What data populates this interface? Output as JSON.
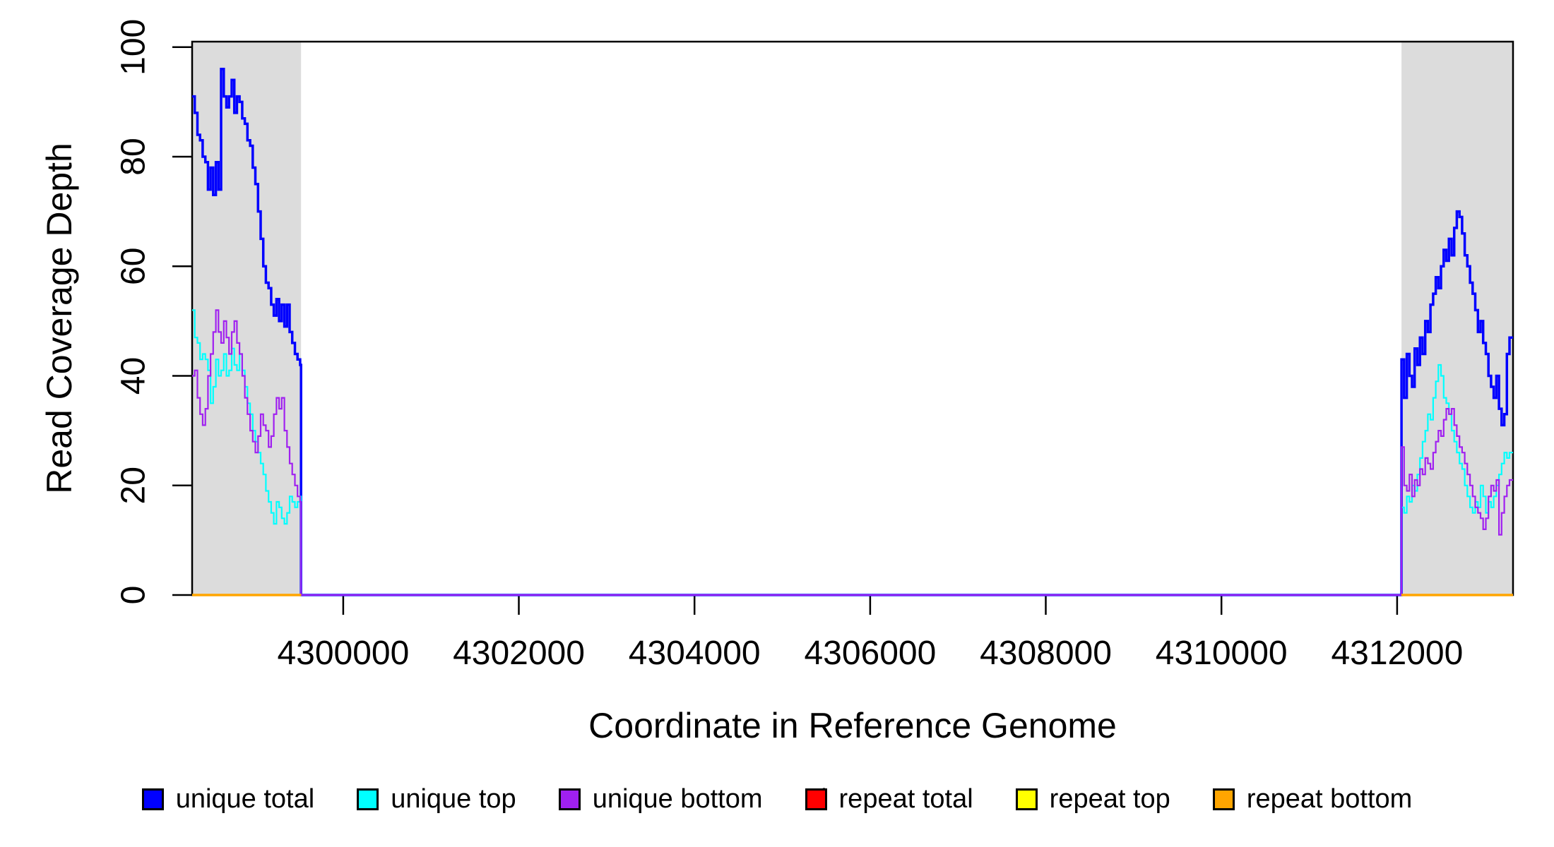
{
  "figure": {
    "x_axis_label": "Coordinate in Reference Genome",
    "y_axis_label": "Read Coverage Depth"
  },
  "chart_data": {
    "type": "line",
    "line_style": "step-after",
    "title": "",
    "xlabel": "Coordinate in Reference Genome",
    "ylabel": "Read Coverage Depth",
    "xlim": [
      4298280,
      4313320
    ],
    "ylim": [
      0,
      101
    ],
    "x_ticks": [
      4300000,
      4302000,
      4304000,
      4306000,
      4308000,
      4310000,
      4312000
    ],
    "y_ticks": [
      0,
      20,
      40,
      60,
      80,
      100
    ],
    "y_tick_labels_rotated": true,
    "grid": false,
    "region_color": "#DCDCDC",
    "shaded_regions": [
      {
        "name": "left-mapped-block",
        "x0": 4298280,
        "x1": 4299520
      },
      {
        "name": "right-mapped-block",
        "x0": 4312050,
        "x1": 4313320
      }
    ],
    "x_step": 30,
    "series": [
      {
        "name": "unique total",
        "color": "#0000FF",
        "width": 3.5,
        "group": "unique",
        "left_values": [
          91,
          88,
          84,
          83,
          80,
          79,
          74,
          78,
          73,
          79,
          74,
          96,
          91,
          89,
          91,
          94,
          88,
          91,
          90,
          87,
          86,
          83,
          82,
          78,
          75,
          70,
          65,
          60,
          57,
          56,
          53,
          51,
          54,
          50,
          53,
          49,
          53,
          48,
          46,
          44,
          43,
          42
        ],
        "right_values": [
          43,
          36,
          44,
          40,
          38,
          45,
          42,
          47,
          44,
          50,
          48,
          53,
          55,
          58,
          56,
          60,
          63,
          61,
          65,
          62,
          67,
          70,
          69,
          66,
          62,
          60,
          57,
          55,
          52,
          48,
          50,
          46,
          44,
          40,
          38,
          36,
          40,
          34,
          31,
          33,
          44,
          47
        ]
      },
      {
        "name": "unique top",
        "color": "#00FFFF",
        "width": 2.2,
        "group": "unique",
        "left_values": [
          52,
          47,
          46,
          43,
          44,
          43,
          41,
          35,
          38,
          43,
          40,
          41,
          44,
          40,
          41,
          45,
          42,
          41,
          44,
          41,
          38,
          35,
          33,
          30,
          28,
          26,
          24,
          22,
          19,
          17,
          15,
          13,
          17,
          16,
          14,
          13,
          15,
          18,
          17,
          16,
          17,
          18
        ],
        "right_values": [
          16,
          15,
          18,
          17,
          20,
          19,
          22,
          25,
          28,
          30,
          33,
          32,
          36,
          39,
          42,
          40,
          36,
          35,
          33,
          30,
          28,
          26,
          24,
          23,
          20,
          18,
          16,
          15,
          17,
          16,
          20,
          18,
          15,
          17,
          16,
          18,
          20,
          22,
          24,
          26,
          25,
          26
        ]
      },
      {
        "name": "unique bottom",
        "color": "#A020F0",
        "width": 2.2,
        "group": "unique",
        "left_values": [
          40,
          41,
          36,
          33,
          31,
          34,
          40,
          44,
          48,
          52,
          48,
          46,
          50,
          47,
          44,
          48,
          50,
          46,
          44,
          40,
          36,
          33,
          30,
          28,
          26,
          29,
          33,
          31,
          30,
          27,
          29,
          33,
          36,
          34,
          36,
          30,
          27,
          24,
          22,
          20,
          18,
          17
        ],
        "right_values": [
          27,
          20,
          19,
          22,
          18,
          21,
          20,
          23,
          22,
          25,
          24,
          23,
          26,
          28,
          30,
          29,
          32,
          34,
          33,
          34,
          31,
          29,
          27,
          26,
          24,
          22,
          20,
          18,
          16,
          15,
          14,
          12,
          14,
          18,
          20,
          19,
          21,
          11,
          15,
          18,
          20,
          21
        ]
      },
      {
        "name": "repeat total",
        "color": "#FF0000",
        "width": 3.0,
        "group": "repeat",
        "constant_value": 0
      },
      {
        "name": "repeat top",
        "color": "#FFFF00",
        "width": 3.0,
        "group": "repeat",
        "constant_value": 0
      },
      {
        "name": "repeat bottom",
        "color": "#FFA500",
        "width": 3.5,
        "group": "repeat",
        "constant_value": 0
      }
    ],
    "legend": [
      {
        "label": "unique total",
        "color": "#0000FF"
      },
      {
        "label": "unique top",
        "color": "#00FFFF"
      },
      {
        "label": "unique bottom",
        "color": "#A020F0"
      },
      {
        "label": "repeat total",
        "color": "#FF0000"
      },
      {
        "label": "repeat top",
        "color": "#FFFF00"
      },
      {
        "label": "repeat bottom",
        "color": "#FFA500"
      }
    ],
    "legend_position": "bottom"
  }
}
